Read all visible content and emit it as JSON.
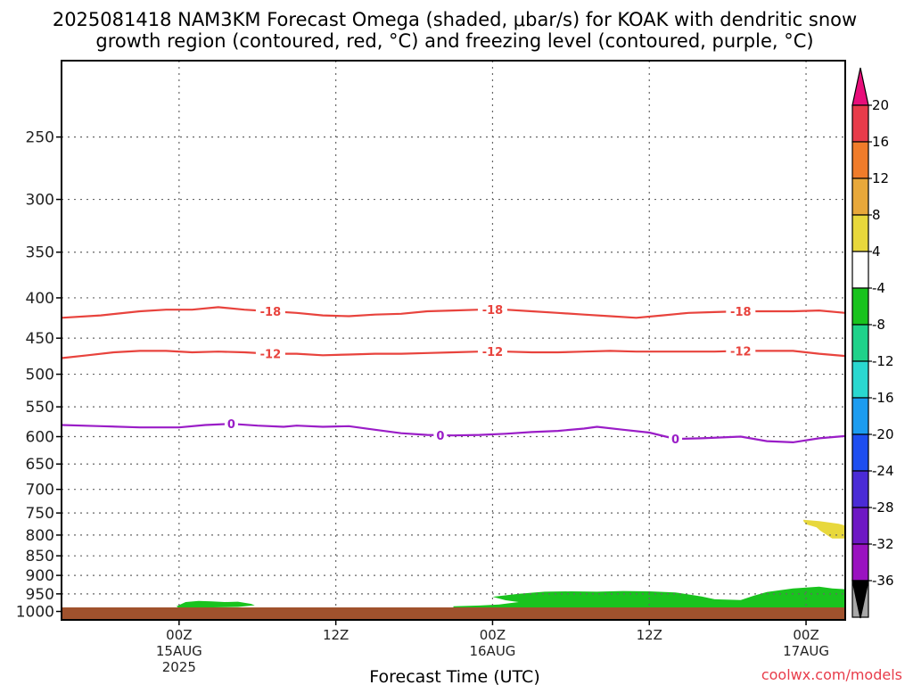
{
  "chart_data": {
    "type": "heatmap",
    "title_line1": "2025081418 NAM3KM Forecast Omega (shaded, μbar/s) for KOAK with dendritic snow",
    "title_line2": "growth region (contoured, red, °C) and freezing level (contoured, purple, °C)",
    "xlabel": "Forecast Time (UTC)",
    "watermark": "coolwx.com/models",
    "x_range_hours": [
      -9,
      51
    ],
    "x_ticks": [
      {
        "h": 0,
        "label": "00Z",
        "sub": "15AUG",
        "sub2": "2025"
      },
      {
        "h": 12,
        "label": "12Z",
        "sub": "",
        "sub2": ""
      },
      {
        "h": 24,
        "label": "00Z",
        "sub": "16AUG",
        "sub2": ""
      },
      {
        "h": 36,
        "label": "12Z",
        "sub": "",
        "sub2": ""
      },
      {
        "h": 48,
        "label": "00Z",
        "sub": "17AUG",
        "sub2": ""
      }
    ],
    "y_ticks": [
      250,
      300,
      350,
      400,
      450,
      500,
      550,
      600,
      650,
      700,
      750,
      800,
      850,
      900,
      950,
      1000
    ],
    "ylim": [
      200,
      1025
    ],
    "y_scale": "log",
    "grid": true,
    "ground_color": "#a0522d",
    "contours": [
      {
        "value": "-18",
        "color": "#e8433d",
        "label_h": [
          7,
          24,
          43
        ],
        "points": [
          [
            -9,
            424
          ],
          [
            -6,
            421
          ],
          [
            -3,
            416
          ],
          [
            -1,
            414
          ],
          [
            1,
            414
          ],
          [
            3,
            411
          ],
          [
            5,
            414
          ],
          [
            7,
            416
          ],
          [
            9,
            418
          ],
          [
            11,
            421
          ],
          [
            13,
            422
          ],
          [
            15,
            420
          ],
          [
            17,
            419
          ],
          [
            19,
            416
          ],
          [
            21,
            415
          ],
          [
            23,
            414
          ],
          [
            25,
            414
          ],
          [
            27,
            416
          ],
          [
            29,
            418
          ],
          [
            31,
            420
          ],
          [
            33,
            422
          ],
          [
            35,
            424
          ],
          [
            37,
            421
          ],
          [
            39,
            418
          ],
          [
            41,
            417
          ],
          [
            43,
            416
          ],
          [
            45,
            416
          ],
          [
            47,
            416
          ],
          [
            49,
            415
          ],
          [
            51,
            418
          ]
        ]
      },
      {
        "value": "-12",
        "color": "#e8433d",
        "label_h": [
          7,
          24,
          43
        ],
        "points": [
          [
            -9,
            477
          ],
          [
            -7,
            473
          ],
          [
            -5,
            469
          ],
          [
            -3,
            467
          ],
          [
            -1,
            467
          ],
          [
            1,
            469
          ],
          [
            3,
            468
          ],
          [
            5,
            469
          ],
          [
            7,
            471
          ],
          [
            9,
            471
          ],
          [
            11,
            473
          ],
          [
            13,
            472
          ],
          [
            15,
            471
          ],
          [
            17,
            471
          ],
          [
            19,
            470
          ],
          [
            21,
            469
          ],
          [
            23,
            468
          ],
          [
            25,
            468
          ],
          [
            27,
            469
          ],
          [
            29,
            469
          ],
          [
            31,
            468
          ],
          [
            33,
            467
          ],
          [
            35,
            468
          ],
          [
            37,
            468
          ],
          [
            39,
            468
          ],
          [
            41,
            468
          ],
          [
            43,
            467
          ],
          [
            45,
            467
          ],
          [
            47,
            467
          ],
          [
            49,
            471
          ],
          [
            51,
            474
          ]
        ]
      },
      {
        "value": "0",
        "color": "#9a1dc7",
        "label_h": [
          4,
          20,
          38
        ],
        "points": [
          [
            -9,
            580
          ],
          [
            -6,
            582
          ],
          [
            -3,
            584
          ],
          [
            0,
            584
          ],
          [
            2,
            580
          ],
          [
            4,
            578
          ],
          [
            6,
            581
          ],
          [
            8,
            583
          ],
          [
            9,
            581
          ],
          [
            11,
            583
          ],
          [
            13,
            582
          ],
          [
            15,
            588
          ],
          [
            17,
            594
          ],
          [
            19,
            597
          ],
          [
            21,
            598
          ],
          [
            23,
            597
          ],
          [
            25,
            595
          ],
          [
            27,
            592
          ],
          [
            29,
            590
          ],
          [
            31,
            586
          ],
          [
            32,
            583
          ],
          [
            34,
            588
          ],
          [
            36,
            593
          ],
          [
            38,
            604
          ],
          [
            40,
            603
          ],
          [
            43,
            600
          ],
          [
            45,
            608
          ],
          [
            47,
            610
          ],
          [
            49,
            603
          ],
          [
            51,
            599
          ]
        ]
      }
    ],
    "shaded_regions": [
      {
        "bin": "-8 to -4",
        "color": "#19c31e",
        "points": [
          [
            -0.2,
            985
          ],
          [
            0.5,
            973
          ],
          [
            1.5,
            970
          ],
          [
            2.5,
            971
          ],
          [
            3.5,
            973
          ],
          [
            4.5,
            972
          ],
          [
            5.5,
            978
          ],
          [
            5.8,
            982
          ],
          [
            4.5,
            987
          ],
          [
            1.5,
            989
          ],
          [
            0,
            990
          ]
        ]
      },
      {
        "bin": "-8 to -4",
        "color": "#19c31e",
        "points": [
          [
            21,
            985
          ],
          [
            23,
            983
          ],
          [
            24.5,
            980
          ],
          [
            26,
            973
          ],
          [
            25,
            968
          ],
          [
            24,
            958
          ],
          [
            26,
            950
          ],
          [
            28,
            944
          ],
          [
            30,
            943
          ],
          [
            32,
            944
          ],
          [
            34,
            942
          ],
          [
            36,
            943
          ],
          [
            38,
            946
          ],
          [
            40,
            957
          ],
          [
            41,
            965
          ],
          [
            43,
            967
          ],
          [
            44,
            955
          ],
          [
            45,
            945
          ],
          [
            47,
            935
          ],
          [
            49,
            930
          ],
          [
            50,
            935
          ],
          [
            51,
            937
          ],
          [
            51,
            1000
          ],
          [
            48,
            1003
          ],
          [
            42,
            1002
          ],
          [
            36,
            1000
          ],
          [
            30,
            996
          ],
          [
            24,
            993
          ],
          [
            21,
            991
          ]
        ]
      },
      {
        "bin": "4 to 8",
        "color": "#e8d83c",
        "points": [
          [
            47.8,
            765
          ],
          [
            49,
            768
          ],
          [
            50.5,
            774
          ],
          [
            51,
            778
          ],
          [
            51,
            808
          ],
          [
            50,
            808
          ],
          [
            49.6,
            800
          ],
          [
            49.1,
            790
          ],
          [
            48.8,
            782
          ],
          [
            48,
            775
          ],
          [
            47.8,
            768
          ]
        ]
      }
    ],
    "colorbar": {
      "labels": [
        "20",
        "16",
        "12",
        "8",
        "4",
        "-4",
        "-8",
        "-12",
        "-16",
        "-20",
        "-24",
        "-28",
        "-32",
        "-36"
      ],
      "colors": [
        "#e83c4a",
        "#f07c2a",
        "#e8a83a",
        "#e8d83c",
        "#ffffff",
        "#19c31e",
        "#1fd28a",
        "#2ad8d0",
        "#1c9cf0",
        "#1e4ef0",
        "#4a2bd6",
        "#6e18c4",
        "#9a12c0",
        "#a8a8a8"
      ],
      "top_color": "#e80e7a",
      "bottom_color": "#000000"
    }
  }
}
